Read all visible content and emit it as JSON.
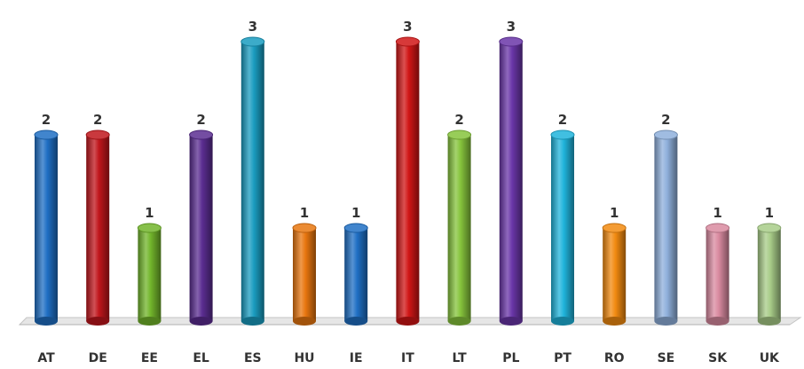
{
  "chart_data": {
    "type": "bar",
    "title": "",
    "xlabel": "",
    "ylabel": "",
    "ylim": [
      0,
      3
    ],
    "grid": false,
    "legend": "none",
    "categories": [
      "AT",
      "DE",
      "EE",
      "EL",
      "ES",
      "HU",
      "IE",
      "IT",
      "LT",
      "PL",
      "PT",
      "RO",
      "SE",
      "SK",
      "UK"
    ],
    "values": [
      2,
      2,
      1,
      2,
      3,
      1,
      1,
      3,
      2,
      3,
      2,
      1,
      2,
      1,
      1
    ],
    "colors": [
      "#1f6fc4",
      "#c0161c",
      "#72b52b",
      "#5b2d91",
      "#1a9cc0",
      "#e8760f",
      "#1f6fc4",
      "#d01616",
      "#86c43c",
      "#6a36a8",
      "#20b4dc",
      "#f28a10",
      "#8fb0dc",
      "#d98aa0",
      "#a8cc88"
    ]
  }
}
